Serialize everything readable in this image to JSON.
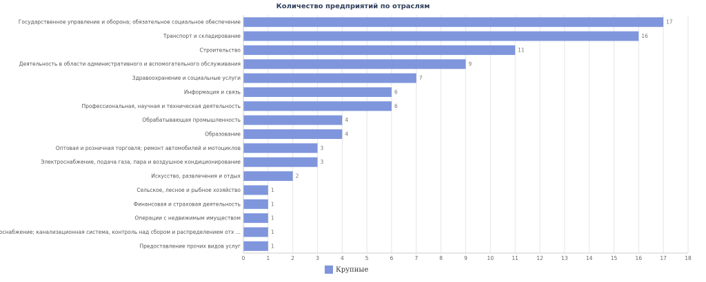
{
  "chart_data": {
    "type": "bar",
    "orientation": "horizontal",
    "title": "Количество предприятий по отраслям",
    "categories": [
      "Государственное управление и оборона; обязательное социальное обеспечение",
      "Транспорт и складирование",
      "Строительство",
      "Деятельность в области административного и вспомогательного обслуживания",
      "Здравоохранение и социальные услуги",
      "Информация и связь",
      "Профессиональная, научная и техническая деятельность",
      "Обрабатывающая промышленность",
      "Образование",
      "Оптовая и розничная торговля; ремонт автомобилей и мотоциклов",
      "Электроснабжение, подача газа, пара и воздушное кондиционирование",
      "Искусство, развлечения и отдых",
      "Сельское, лесное и рыбное хозяйство",
      "Финансовая и страховая деятельность",
      "Операции с недвижимым имуществом",
      "Водоснабжение; канализационная система, контроль над сбором и распределением отх ...",
      "Предоставление прочих видов услуг"
    ],
    "series": [
      {
        "name": "Крупные",
        "values": [
          17,
          16,
          11,
          9,
          7,
          6,
          6,
          4,
          4,
          3,
          3,
          2,
          1,
          1,
          1,
          1,
          1
        ]
      }
    ],
    "xlim": [
      0,
      18
    ],
    "xticks": [
      0,
      1,
      2,
      3,
      4,
      5,
      6,
      7,
      8,
      9,
      10,
      11,
      12,
      13,
      14,
      15,
      16,
      17,
      18
    ],
    "grid": true,
    "legend_position": "bottom",
    "bar_color": "#7f96dc"
  }
}
